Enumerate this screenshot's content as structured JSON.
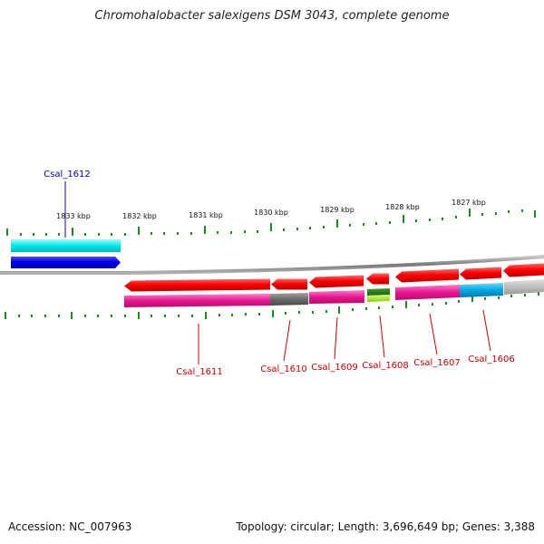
{
  "title": "Chromohalobacter salexigens DSM 3043, complete genome",
  "footer": {
    "accession": "Accession: NC_007963",
    "summary": "Topology: circular; Length: 3,696,649 bp; Genes: 3,388"
  },
  "kbp_labels": [
    "1833 kbp",
    "1832 kbp",
    "1831 kbp",
    "1830 kbp",
    "1829 kbp",
    "1828 kbp",
    "1827 kbp"
  ],
  "genes": [
    {
      "name": "Csal_1612",
      "strand": "forward",
      "color": "#0000cc"
    },
    {
      "name": "Csal_1611",
      "strand": "reverse",
      "color": "#cc0000"
    },
    {
      "name": "Csal_1610",
      "strand": "reverse",
      "color": "#cc0000"
    },
    {
      "name": "Csal_1609",
      "strand": "reverse",
      "color": "#cc0000"
    },
    {
      "name": "Csal_1608",
      "strand": "reverse",
      "color": "#cc0000"
    },
    {
      "name": "Csal_1607",
      "strand": "reverse",
      "color": "#cc0000"
    },
    {
      "name": "Csal_1606",
      "strand": "reverse",
      "color": "#cc0000"
    }
  ],
  "colors": {
    "forward_gene": "#0000ee",
    "forward_cog": "#00e5e5",
    "reverse_gene": "#ee0000",
    "cog_magenta": "#e8168f",
    "cog_gray": "#6b6b6b",
    "cog_cyan": "#00a8e0",
    "cog_green": "#2e7d1a",
    "cog_lightgreen": "#9ee01a",
    "tick": "#1a8c1a",
    "backbone": "#808080"
  }
}
